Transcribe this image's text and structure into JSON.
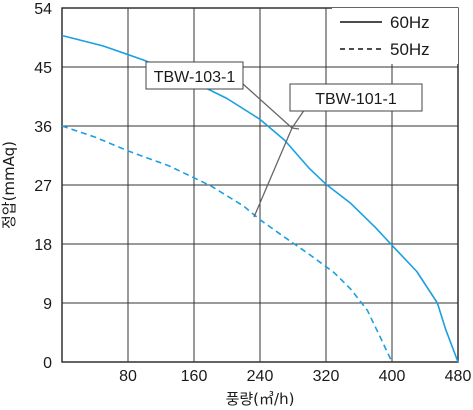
{
  "chart_data": {
    "type": "line",
    "title": "",
    "xlabel": "풍량(㎥/h)",
    "ylabel": "정압(mmAq)",
    "xlim": [
      0,
      480
    ],
    "ylim": [
      0,
      54
    ],
    "x_ticks": [
      0,
      80,
      160,
      240,
      320,
      400,
      480
    ],
    "y_ticks": [
      0,
      9,
      18,
      27,
      36,
      45,
      54
    ],
    "grid": true,
    "legend_position": "top-right",
    "legend": [
      {
        "label": "60Hz",
        "style": "solid"
      },
      {
        "label": "50Hz",
        "style": "dashed"
      }
    ],
    "series_color": "#1aa0e0",
    "series": [
      {
        "style": "solid",
        "x": [
          0,
          50,
          100,
          150,
          200,
          240,
          270,
          300,
          320,
          350,
          380,
          400,
          430,
          455,
          465,
          480
        ],
        "y": [
          49.8,
          48.2,
          46.0,
          43.3,
          40.2,
          37.0,
          33.8,
          29.5,
          27.1,
          24.2,
          20.5,
          17.8,
          13.8,
          9.0,
          5.0,
          0
        ]
      },
      {
        "style": "dashed",
        "x": [
          0,
          40,
          80,
          130,
          180,
          220,
          240,
          270,
          300,
          330,
          350,
          370,
          385,
          400
        ],
        "y": [
          36.0,
          34.3,
          32.2,
          29.9,
          26.9,
          23.8,
          21.7,
          19.0,
          16.4,
          13.6,
          11.1,
          7.9,
          4.0,
          0
        ]
      }
    ],
    "annotations": [
      {
        "label": "TBW-103-1"
      },
      {
        "label": "TBW-101-1"
      }
    ]
  }
}
